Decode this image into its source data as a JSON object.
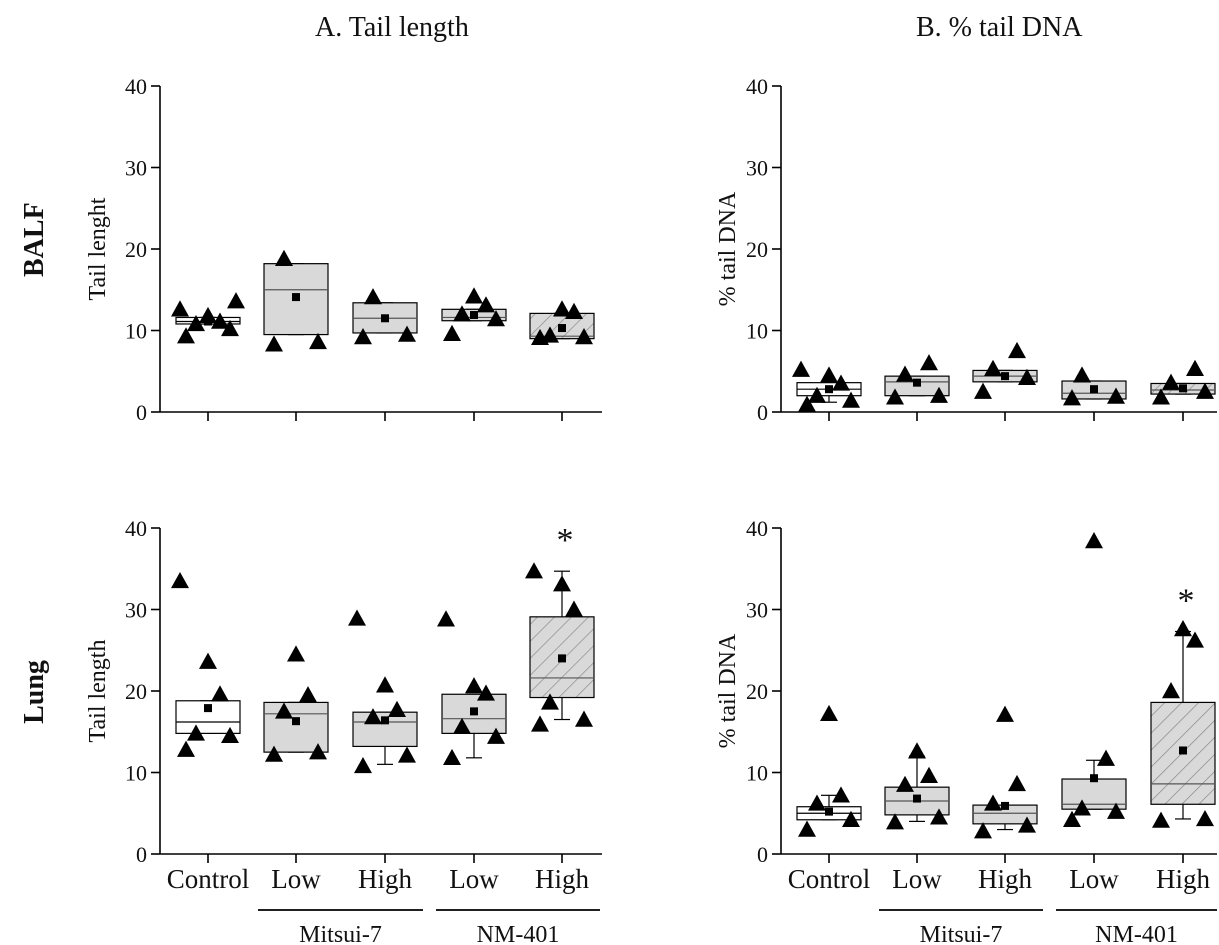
{
  "column_titles": [
    "A. Tail length",
    "B. % tail DNA"
  ],
  "row_labels": [
    "BALF",
    "Lung"
  ],
  "x_categories": [
    "Control",
    "Low",
    "High",
    "Low",
    "High"
  ],
  "groups": [
    "Mitsui-7",
    "NM-401"
  ],
  "colors": {
    "box_fill": "#d9d9d9",
    "control_fill": "#ffffff",
    "marker": "#000000",
    "hatch": "#8a8a8a"
  },
  "chart_data": [
    {
      "type": "box",
      "panel": "BALF A",
      "title": "",
      "ylabel": "Tail lenght",
      "ylim": [
        0,
        40
      ],
      "yticks": [
        0,
        10,
        20,
        30,
        40
      ],
      "categories": [
        "Control",
        "Low",
        "High",
        "Low",
        "High"
      ],
      "boxes": [
        {
          "q1": 10.8,
          "median": 11.1,
          "q3": 11.6,
          "whisker_low": 10.8,
          "whisker_high": 11.6,
          "mean": 11.1,
          "points": [
            9.3,
            10.2,
            10.8,
            11.1,
            11.8,
            12.6,
            13.6
          ],
          "hatched": false,
          "fill": "white"
        },
        {
          "q1": 9.5,
          "median": 15.0,
          "q3": 18.2,
          "whisker_low": 9.5,
          "whisker_high": 18.2,
          "mean": 14.1,
          "points": [
            8.3,
            8.6,
            18.8
          ],
          "hatched": false,
          "fill": "gray"
        },
        {
          "q1": 9.7,
          "median": 11.5,
          "q3": 13.4,
          "whisker_low": 9.7,
          "whisker_high": 13.4,
          "mean": 11.5,
          "points": [
            9.2,
            9.5,
            14.1
          ],
          "hatched": false,
          "fill": "gray"
        },
        {
          "q1": 11.2,
          "median": 11.6,
          "q3": 12.6,
          "whisker_low": 11.2,
          "whisker_high": 12.6,
          "mean": 11.9,
          "points": [
            9.6,
            11.4,
            12.0,
            13.1,
            14.2
          ],
          "hatched": false,
          "fill": "gray"
        },
        {
          "q1": 9.0,
          "median": 9.3,
          "q3": 12.1,
          "whisker_low": 9.0,
          "whisker_high": 12.1,
          "mean": 10.3,
          "points": [
            9.1,
            9.2,
            9.4,
            12.3,
            12.6
          ],
          "hatched": true,
          "fill": "gray"
        }
      ]
    },
    {
      "type": "box",
      "panel": "BALF B",
      "title": "",
      "ylabel": "% tail DNA",
      "ylim": [
        0,
        40
      ],
      "yticks": [
        0,
        10,
        20,
        30,
        40
      ],
      "categories": [
        "Control",
        "Low",
        "High",
        "Low",
        "High"
      ],
      "boxes": [
        {
          "q1": 2.0,
          "median": 2.8,
          "q3": 3.6,
          "whisker_low": 1.2,
          "whisker_high": 3.6,
          "mean": 2.8,
          "points": [
            0.9,
            1.4,
            2.0,
            3.5,
            4.5,
            5.2
          ],
          "hatched": false,
          "fill": "white"
        },
        {
          "q1": 2.0,
          "median": 3.7,
          "q3": 4.4,
          "whisker_low": 2.0,
          "whisker_high": 4.4,
          "mean": 3.6,
          "points": [
            1.8,
            2.0,
            4.6,
            6.0
          ],
          "hatched": false,
          "fill": "gray"
        },
        {
          "q1": 3.7,
          "median": 4.4,
          "q3": 5.1,
          "whisker_low": 3.7,
          "whisker_high": 5.1,
          "mean": 4.4,
          "points": [
            2.5,
            4.2,
            5.3,
            7.5
          ],
          "hatched": false,
          "fill": "gray"
        },
        {
          "q1": 1.6,
          "median": 2.3,
          "q3": 3.8,
          "whisker_low": 1.6,
          "whisker_high": 3.8,
          "mean": 2.8,
          "points": [
            1.7,
            1.9,
            4.5
          ],
          "hatched": false,
          "fill": "gray"
        },
        {
          "q1": 2.2,
          "median": 2.7,
          "q3": 3.5,
          "whisker_low": 2.2,
          "whisker_high": 3.5,
          "mean": 2.9,
          "points": [
            1.8,
            2.5,
            3.6,
            5.3
          ],
          "hatched": true,
          "fill": "gray"
        }
      ]
    },
    {
      "type": "box",
      "panel": "Lung A",
      "title": "",
      "ylabel": "Tail length",
      "ylim": [
        0,
        40
      ],
      "yticks": [
        0,
        10,
        20,
        30,
        40
      ],
      "categories": [
        "Control",
        "Low",
        "High",
        "Low",
        "High"
      ],
      "boxes": [
        {
          "q1": 14.8,
          "median": 16.2,
          "q3": 18.8,
          "whisker_low": 14.8,
          "whisker_high": 18.8,
          "mean": 17.9,
          "points": [
            12.8,
            14.5,
            14.8,
            19.6,
            23.6,
            33.5
          ],
          "hatched": false,
          "fill": "white"
        },
        {
          "q1": 12.5,
          "median": 17.2,
          "q3": 18.6,
          "whisker_low": 12.5,
          "whisker_high": 18.6,
          "mean": 16.3,
          "points": [
            12.2,
            12.5,
            17.5,
            19.5,
            24.5
          ],
          "hatched": false,
          "fill": "gray"
        },
        {
          "q1": 13.2,
          "median": 16.2,
          "q3": 17.4,
          "whisker_low": 11.0,
          "whisker_high": 17.4,
          "mean": 16.4,
          "points": [
            10.8,
            12.1,
            16.8,
            17.7,
            20.7,
            28.9
          ],
          "hatched": false,
          "fill": "gray"
        },
        {
          "q1": 14.8,
          "median": 16.6,
          "q3": 19.6,
          "whisker_low": 11.8,
          "whisker_high": 19.6,
          "mean": 17.5,
          "points": [
            11.8,
            14.4,
            15.6,
            19.7,
            20.6,
            28.8
          ],
          "hatched": false,
          "fill": "gray"
        },
        {
          "q1": 19.2,
          "median": 21.6,
          "q3": 29.1,
          "whisker_low": 16.5,
          "whisker_high": 34.7,
          "mean": 24.0,
          "points": [
            15.9,
            16.5,
            18.6,
            30.0,
            33.1,
            34.7
          ],
          "hatched": true,
          "fill": "gray",
          "annotation": "*"
        }
      ]
    },
    {
      "type": "box",
      "panel": "Lung B",
      "title": "",
      "ylabel": "% tail DNA",
      "ylim": [
        0,
        40
      ],
      "yticks": [
        0,
        10,
        20,
        30,
        40
      ],
      "categories": [
        "Control",
        "Low",
        "High",
        "Low",
        "High"
      ],
      "boxes": [
        {
          "q1": 4.2,
          "median": 5.0,
          "q3": 5.8,
          "whisker_low": 4.2,
          "whisker_high": 7.2,
          "mean": 5.2,
          "points": [
            3.0,
            4.2,
            6.2,
            7.2,
            17.2
          ],
          "hatched": false,
          "fill": "white"
        },
        {
          "q1": 4.8,
          "median": 6.5,
          "q3": 8.2,
          "whisker_low": 4.0,
          "whisker_high": 12.0,
          "mean": 6.8,
          "points": [
            3.9,
            4.5,
            8.5,
            9.6,
            12.6
          ],
          "hatched": false,
          "fill": "gray"
        },
        {
          "q1": 3.7,
          "median": 5.0,
          "q3": 6.0,
          "whisker_low": 3.0,
          "whisker_high": 6.0,
          "mean": 5.9,
          "points": [
            2.8,
            3.5,
            6.2,
            8.6,
            17.1
          ],
          "hatched": false,
          "fill": "gray"
        },
        {
          "q1": 5.5,
          "median": 6.1,
          "q3": 9.2,
          "whisker_low": 5.5,
          "whisker_high": 11.5,
          "mean": 9.3,
          "points": [
            4.2,
            5.2,
            5.6,
            11.7,
            38.4
          ],
          "hatched": false,
          "fill": "gray"
        },
        {
          "q1": 6.1,
          "median": 8.6,
          "q3": 18.6,
          "whisker_low": 4.3,
          "whisker_high": 27.3,
          "mean": 12.7,
          "points": [
            4.1,
            4.3,
            20.0,
            26.2,
            27.6
          ],
          "hatched": true,
          "fill": "gray",
          "annotation": "*"
        }
      ]
    }
  ]
}
